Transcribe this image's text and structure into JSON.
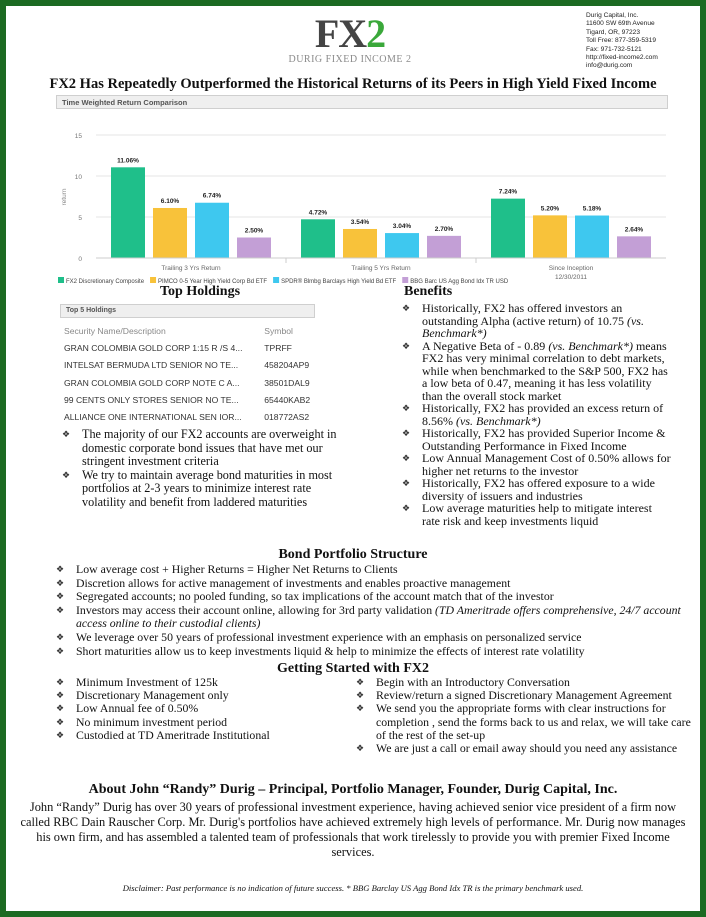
{
  "logo": {
    "main": "FX",
    "accent": "2",
    "sub": "DURIG FIXED INCOME 2"
  },
  "address": [
    "Durig Capital, Inc.",
    "11600 SW 69th Avenue",
    "Tigard, OR, 97223",
    "Toll Free: 877-359-5319",
    "Fax: 971-732-5121",
    "http://fixed-income2.com",
    "info@durig.com"
  ],
  "title": "FX2 Has Repeatedly Outperformed the Historical Returns of its Peers in High Yield Fixed Income",
  "chart_data": {
    "type": "bar",
    "panel_title": "Time Weighted Return Comparison",
    "ylabel": "return",
    "ylim": [
      0,
      15
    ],
    "yticks": [
      "0",
      "5",
      "10",
      "15"
    ],
    "grid": true,
    "legend_placement": "bottom",
    "categories": [
      "Trailing 3 Yrs Return",
      "Trailing 5 Yrs Return",
      "Since Inception"
    ],
    "category_sublabels": [
      "",
      "",
      "12/30/2011"
    ],
    "series": [
      {
        "name": "FX2 Discretionary Composite",
        "color": "#1fbf8a",
        "values": [
          11.06,
          4.72,
          7.24
        ],
        "labels": [
          "11.06%",
          "4.72%",
          "7.24%"
        ]
      },
      {
        "name": "PIMCO 0-5 Year High Yield Corp Bd ETF",
        "color": "#f8c23a",
        "values": [
          6.1,
          3.54,
          5.2
        ],
        "labels": [
          "6.10%",
          "3.54%",
          "5.20%"
        ]
      },
      {
        "name": "SPDR® Blmbg Barclays High Yield Bd ETF",
        "color": "#3ec8ef",
        "values": [
          6.74,
          3.04,
          5.18
        ],
        "labels": [
          "6.74%",
          "3.04%",
          "5.18%"
        ]
      },
      {
        "name": "BBG Barc US Agg Bond Idx TR USD",
        "color": "#c39fd6",
        "values": [
          2.5,
          2.7,
          2.64
        ],
        "labels": [
          "2.50%",
          "2.70%",
          "2.64%"
        ]
      }
    ]
  },
  "holdings": {
    "heading": "Top Holdings",
    "panel_title": "Top 5 Holdings",
    "col_name": "Security Name/Description",
    "col_symbol": "Symbol",
    "rows": [
      {
        "name": "GRAN COLOMBIA GOLD CORP 1:15 R /S 4...",
        "symbol": "TPRFF"
      },
      {
        "name": "INTELSAT BERMUDA LTD SENIOR NO TE...",
        "symbol": "458204AP9"
      },
      {
        "name": "GRAN COLOMBIA GOLD CORP NOTE C A...",
        "symbol": "38501DAL9"
      },
      {
        "name": "99 CENTS ONLY STORES SENIOR NO TE...",
        "symbol": "65440KAB2"
      },
      {
        "name": "ALLIANCE ONE INTERNATIONAL SEN IOR...",
        "symbol": "018772AS2"
      }
    ],
    "bullets": [
      "The majority of our FX2 accounts are overweight in domestic corporate bond issues that have met our stringent investment criteria",
      "We try to maintain average bond maturities in most portfolios at 2-3 years to minimize interest rate volatility and benefit from laddered maturities"
    ]
  },
  "benefits": {
    "heading": "Benefits",
    "items": [
      {
        "text": "Historically, FX2 has offered investors an outstanding Alpha (active return) of 10.75 ",
        "em": "(vs. Benchmark*)",
        "tail": ""
      },
      {
        "text": "A Negative Beta of - 0.89 ",
        "em": "(vs. Benchmark*)",
        "tail": " means FX2 has very minimal correlation to debt markets, while when benchmarked to the S&P 500, FX2 has a low beta of 0.47, meaning it has less volatility than the overall stock market"
      },
      {
        "text": "Historically, FX2 has provided an excess return of 8.56% ",
        "em": "(vs. Benchmark*)",
        "tail": ""
      },
      {
        "text": "Historically, FX2 has provided Superior Income & Outstanding Performance in Fixed Income",
        "em": "",
        "tail": ""
      },
      {
        "text": "Low Annual Management Cost of 0.50% allows for higher net returns to the investor",
        "em": "",
        "tail": ""
      },
      {
        "text": "Historically, FX2 has offered exposure to a wide diversity of issuers and industries",
        "em": "",
        "tail": ""
      },
      {
        "text": "Low average maturities help to mitigate interest rate risk and keep investments liquid",
        "em": "",
        "tail": ""
      }
    ]
  },
  "bond": {
    "heading": "Bond Portfolio Structure",
    "items": [
      {
        "text": "Low average cost + Higher Returns = Higher Net Returns to Clients",
        "em": ""
      },
      {
        "text": "Discretion allows for active management of investments and enables proactive management",
        "em": ""
      },
      {
        "text": "Segregated accounts; no pooled funding, so tax implications of the account match that of the investor",
        "em": ""
      },
      {
        "text": "Investors may access their account online, allowing for 3rd party validation ",
        "em": "(TD Ameritrade offers comprehensive, 24/7 account access online to their custodial clients)"
      },
      {
        "text": "We leverage over 50 years of professional investment experience with an emphasis on  personalized service",
        "em": ""
      },
      {
        "text": " Short maturities allow us to keep investments liquid & help to minimize the effects of interest rate volatility",
        "em": ""
      }
    ]
  },
  "getting_started": {
    "heading": "Getting Started with FX2",
    "left": [
      "Minimum Investment of 125k",
      "Discretionary Management only",
      "Low Annual fee of 0.50%",
      "No minimum investment period",
      "Custodied at TD Ameritrade Institutional"
    ],
    "right": [
      "Begin with an Introductory Conversation",
      "Review/return a signed Discretionary Management Agreement",
      "We send you the appropriate forms with clear instructions for completion , send the forms back to us and relax, we will take care of the rest of the set-up",
      "We are just a call or email away should you need any assistance"
    ]
  },
  "about": {
    "heading": "About John “Randy” Durig – Principal, Portfolio Manager, Founder, Durig Capital, Inc.",
    "text": "John “Randy” Durig has over 30 years of professional investment experience, having achieved senior vice president of a firm now called RBC Dain Rauscher Corp. Mr. Durig's portfolios have achieved extremely high levels of performance. Mr. Durig now manages his own firm, and has assembled a talented team of professionals that work tirelessly to provide you with premier Fixed Income services."
  },
  "disclaimer": "Disclaimer: Past performance is no indication of future success. * BBG Barclay US Agg Bond Idx TR is the primary benchmark used.",
  "colors": {
    "border": "#1c6a22",
    "logo_accent": "#3aa83a"
  }
}
